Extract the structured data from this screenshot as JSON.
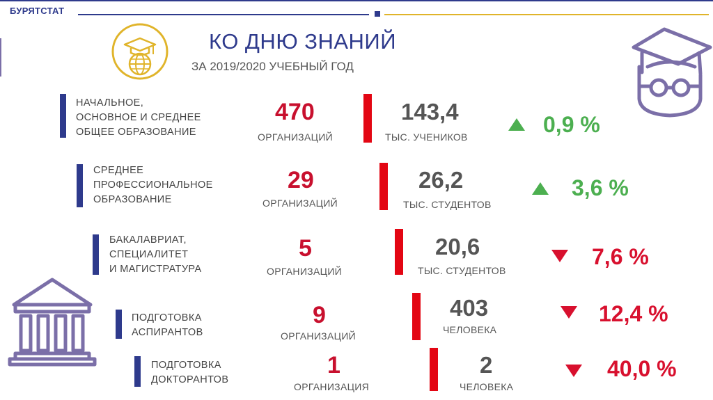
{
  "brand": "БУРЯТСТАТ",
  "title": "КО ДНЮ ЗНАНИЙ",
  "subtitle": "ЗА 2019/2020 УЧЕБНЫЙ ГОД",
  "rows": [
    {
      "label": [
        "НАЧАЛЬНОЕ,",
        "ОСНОВНОЕ  И СРЕДНЕЕ",
        "ОБЩЕЕ ОБРАЗОВАНИЕ"
      ],
      "orgs": "470",
      "orgs_unit": "ОРГАНИЗАЦИЙ",
      "value": "143,4",
      "value_unit": "ТЫС. УЧЕНИКОВ",
      "change": "0,9 %",
      "direction": "up"
    },
    {
      "label": [
        "СРЕДНЕЕ",
        "ПРОФЕССИОНАЛЬНОЕ",
        "ОБРАЗОВАНИЕ"
      ],
      "orgs": "29",
      "orgs_unit": "ОРГАНИЗАЦИЙ",
      "value": "26,2",
      "value_unit": "ТЫС. СТУДЕНТОВ",
      "change": "3,6 %",
      "direction": "up"
    },
    {
      "label": [
        "БАКАЛАВРИАТ,",
        "СПЕЦИАЛИТЕТ",
        "И МАГИСТРАТУРА"
      ],
      "orgs": "5",
      "orgs_unit": "ОРГАНИЗАЦИЙ",
      "value": "20,6",
      "value_unit": "ТЫС. СТУДЕНТОВ",
      "change": "7,6 %",
      "direction": "down"
    },
    {
      "label": [
        "ПОДГОТОВКА",
        "АСПИРАНТОВ"
      ],
      "orgs": "9",
      "orgs_unit": "ОРГАНИЗАЦИЙ",
      "value": "403",
      "value_unit": "ЧЕЛОВЕКА",
      "change": "12,4 %",
      "direction": "down"
    },
    {
      "label": [
        "ПОДГОТОВКА",
        "ДОКТОРАНТОВ"
      ],
      "orgs": "1",
      "orgs_unit": "ОРГАНИЗАЦИЯ",
      "value": "2",
      "value_unit": "ЧЕЛОВЕКА",
      "change": "40,0 %",
      "direction": "down"
    }
  ],
  "colors": {
    "brand_blue": "#2e3a8c",
    "accent_red": "#e30613",
    "up_green": "#4caf50",
    "down_red": "#d8102e",
    "gold": "#e0b42a",
    "icon_purple": "#7b6fa8"
  },
  "icons": [
    "graduation-globe-icon",
    "graduate-student-icon",
    "university-building-icon"
  ]
}
